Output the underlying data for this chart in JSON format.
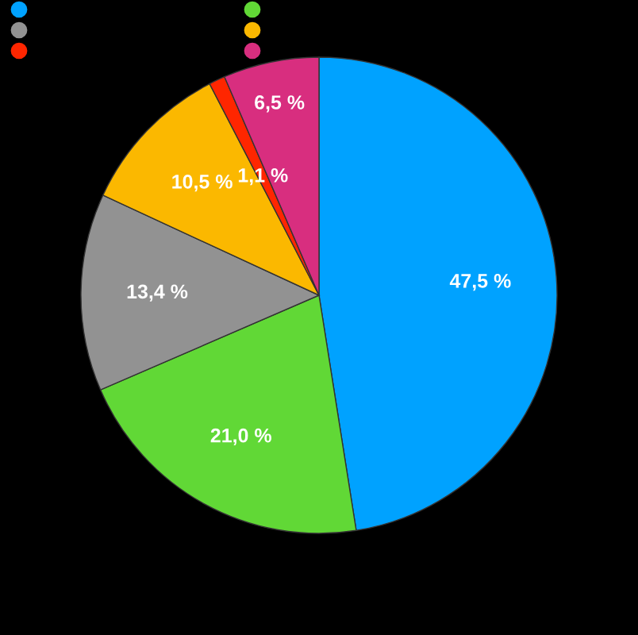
{
  "chart_data": {
    "type": "pie",
    "categories": [
      null,
      null,
      null,
      null,
      null,
      null
    ],
    "values": [
      47.5,
      21.0,
      13.4,
      10.5,
      1.1,
      6.5
    ],
    "value_labels": [
      "47,5 %",
      "21,0 %",
      "13,4 %",
      "10,5 %",
      "1,1 %",
      "6,5 %"
    ],
    "colors": [
      "#00a2ff",
      "#61d836",
      "#929292",
      "#fbb800",
      "#ff2600",
      "#d82e7f"
    ]
  }
}
